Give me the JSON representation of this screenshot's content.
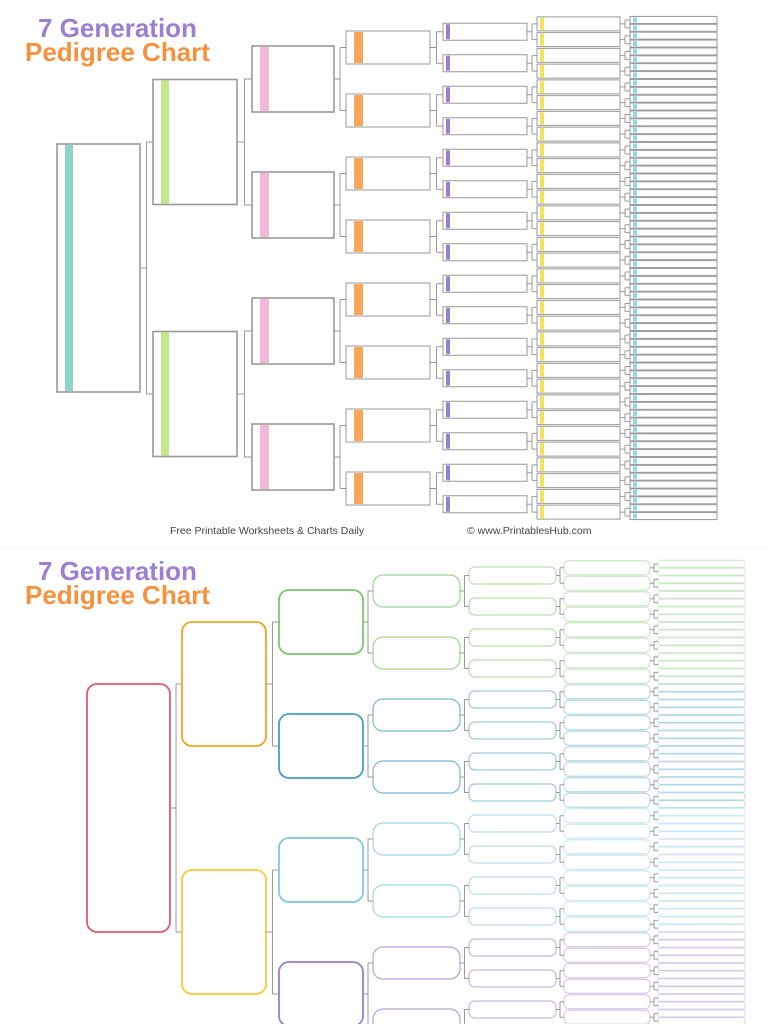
{
  "charts": [
    {
      "title_line1": "7 Generation",
      "title_line2": "Pedigree Chart",
      "footer_left": "Free Printable Worksheets & Charts Daily",
      "footer_right": "© www.PrintablesHub.com"
    },
    {
      "title_line1": "7 Generation",
      "title_line2": "Pedigree Chart"
    }
  ]
}
